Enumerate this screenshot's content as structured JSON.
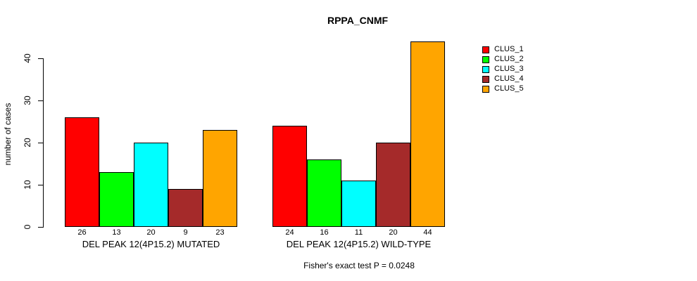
{
  "chart_data": {
    "type": "bar",
    "title": "RPPA_CNMF",
    "ylabel": "number of cases",
    "xlabel": "",
    "ylim": [
      0,
      44
    ],
    "yticks": [
      0,
      10,
      20,
      30,
      40
    ],
    "grid": false,
    "legend_position": "right-outside",
    "bar_border_color": "#000000",
    "categories": [
      "DEL PEAK 12(4P15.2) MUTATED",
      "DEL PEAK 12(4P15.2) WILD-TYPE"
    ],
    "series": [
      {
        "name": "CLUS_1",
        "color": "#ff0000",
        "values": [
          26,
          24
        ]
      },
      {
        "name": "CLUS_2",
        "color": "#00ff00",
        "values": [
          13,
          16
        ]
      },
      {
        "name": "CLUS_3",
        "color": "#00ffff",
        "values": [
          20,
          11
        ]
      },
      {
        "name": "CLUS_4",
        "color": "#a52a2a",
        "values": [
          9,
          20
        ]
      },
      {
        "name": "CLUS_5",
        "color": "#ffa500",
        "values": [
          23,
          44
        ]
      }
    ],
    "value_labels": {
      "DEL PEAK 12(4P15.2) MUTATED": [
        26,
        13,
        20,
        9,
        23
      ],
      "DEL PEAK 12(4P15.2) WILD-TYPE": [
        24,
        16,
        11,
        20,
        44
      ]
    },
    "annotation": "Fisher's exact test P = 0.0248"
  }
}
